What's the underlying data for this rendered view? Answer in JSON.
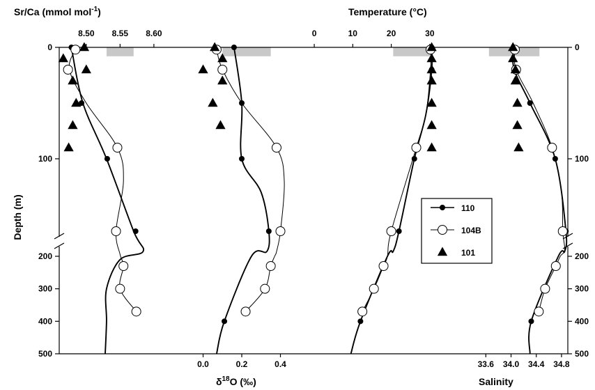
{
  "chart_data": {
    "type": "scatter",
    "title": "",
    "layout": "multi-panel depth profiles sharing a broken depth axis",
    "y_axis": {
      "label": "Depth (m)",
      "inverted": true,
      "upper_ticks": [
        "0",
        "100"
      ],
      "upper_tick_values": [
        0,
        100
      ],
      "upper_range": [
        0,
        170
      ],
      "lower_ticks": [
        "200",
        "300",
        "400",
        "500"
      ],
      "lower_tick_values": [
        200,
        300,
        400,
        500
      ],
      "lower_range": [
        170,
        500
      ]
    },
    "top_axes": [
      {
        "label": "Sr/Ca (mmol mol",
        "label_sup": "-1",
        "label_tail": ")",
        "ticks": [
          "8.50",
          "8.55",
          "8.60"
        ],
        "tick_values": [
          8.5,
          8.55,
          8.6
        ],
        "range": [
          8.46,
          8.63
        ]
      },
      {
        "label": "Temperature (°C)",
        "ticks": [
          "0",
          "10",
          "20",
          "30"
        ],
        "tick_values": [
          0,
          10,
          20,
          30
        ],
        "range": [
          -2,
          36
        ]
      }
    ],
    "bottom_axes": [
      {
        "label_delta": "δ",
        "label_sup": "18",
        "label_tail": "O (‰)",
        "ticks": [
          "0.0",
          "0.2",
          "0.4"
        ],
        "tick_values": [
          0.0,
          0.2,
          0.4
        ],
        "range": [
          -0.2,
          0.6
        ]
      },
      {
        "label": "Salinity",
        "ticks": [
          "33.6",
          "34.0",
          "34.4",
          "34.8"
        ],
        "tick_values": [
          33.6,
          34.0,
          34.4,
          34.8
        ],
        "range": [
          33.1,
          34.9
        ]
      }
    ],
    "legend": {
      "position": "right-middle",
      "entries": [
        {
          "label": "110",
          "marker": "filled-circle"
        },
        {
          "label": "104B",
          "marker": "open-circle"
        },
        {
          "label": "101",
          "marker": "filled-triangle"
        }
      ]
    },
    "mixed_layer_bars": [
      {
        "variable": "Sr/Ca",
        "x_range": [
          8.53,
          8.57
        ],
        "depth_range": [
          0,
          8
        ]
      },
      {
        "variable": "d18O",
        "x_range": [
          0.1,
          0.35
        ],
        "depth_range": [
          0,
          8
        ]
      },
      {
        "variable": "Temperature",
        "x_range": [
          20.5,
          30
        ],
        "depth_range": [
          0,
          8
        ]
      },
      {
        "variable": "Salinity",
        "x_range": [
          33.65,
          34.45
        ],
        "depth_range": [
          0,
          8
        ]
      }
    ],
    "series": [
      {
        "name": "110",
        "variable": "Sr/Ca",
        "marker": "filled-circle",
        "points": [
          {
            "x": 8.478,
            "y": 0
          },
          {
            "x": 8.493,
            "y": 50
          },
          {
            "x": 8.531,
            "y": 100
          },
          {
            "x": 8.573,
            "y": 165
          }
        ],
        "curve": [
          {
            "x": 8.478,
            "y": 0
          },
          {
            "x": 8.495,
            "y": 50
          },
          {
            "x": 8.53,
            "y": 100
          },
          {
            "x": 8.57,
            "y": 165
          },
          {
            "x": 8.584,
            "y": 185
          },
          {
            "x": 8.55,
            "y": 210
          },
          {
            "x": 8.53,
            "y": 300
          },
          {
            "x": 8.53,
            "y": 400
          },
          {
            "x": 8.528,
            "y": 500
          }
        ]
      },
      {
        "name": "104B",
        "variable": "Sr/Ca",
        "marker": "open-circle",
        "points": [
          {
            "x": 8.484,
            "y": 2
          },
          {
            "x": 8.473,
            "y": 20
          },
          {
            "x": 8.546,
            "y": 90
          },
          {
            "x": 8.544,
            "y": 165
          },
          {
            "x": 8.555,
            "y": 230
          },
          {
            "x": 8.55,
            "y": 300
          },
          {
            "x": 8.574,
            "y": 370
          }
        ],
        "curve": [
          {
            "x": 8.484,
            "y": 2
          },
          {
            "x": 8.475,
            "y": 20
          },
          {
            "x": 8.5,
            "y": 50
          },
          {
            "x": 8.546,
            "y": 90
          },
          {
            "x": 8.555,
            "y": 120
          },
          {
            "x": 8.544,
            "y": 165
          },
          {
            "x": 8.55,
            "y": 195
          },
          {
            "x": 8.555,
            "y": 230
          },
          {
            "x": 8.55,
            "y": 300
          },
          {
            "x": 8.574,
            "y": 370
          }
        ]
      },
      {
        "name": "101",
        "variable": "Sr/Ca",
        "marker": "filled-triangle",
        "points": [
          {
            "x": 8.497,
            "y": 0
          },
          {
            "x": 8.466,
            "y": 10
          },
          {
            "x": 8.5,
            "y": 20
          },
          {
            "x": 8.48,
            "y": 30
          },
          {
            "x": 8.485,
            "y": 50
          },
          {
            "x": 8.48,
            "y": 70
          },
          {
            "x": 8.474,
            "y": 90
          }
        ]
      },
      {
        "name": "110",
        "variable": "d18O",
        "marker": "filled-circle",
        "points": [
          {
            "x": 0.16,
            "y": 0
          },
          {
            "x": 0.2,
            "y": 50
          },
          {
            "x": 0.2,
            "y": 100
          },
          {
            "x": 0.34,
            "y": 165
          },
          {
            "x": 0.11,
            "y": 400
          }
        ],
        "curve": [
          {
            "x": 0.16,
            "y": 0
          },
          {
            "x": 0.2,
            "y": 50
          },
          {
            "x": 0.2,
            "y": 100
          },
          {
            "x": 0.3,
            "y": 130
          },
          {
            "x": 0.34,
            "y": 165
          },
          {
            "x": 0.33,
            "y": 185
          },
          {
            "x": 0.25,
            "y": 200
          },
          {
            "x": 0.11,
            "y": 400
          },
          {
            "x": 0.07,
            "y": 500
          }
        ]
      },
      {
        "name": "104B",
        "variable": "d18O",
        "marker": "open-circle",
        "points": [
          {
            "x": 0.07,
            "y": 2
          },
          {
            "x": 0.1,
            "y": 20
          },
          {
            "x": 0.38,
            "y": 90
          },
          {
            "x": 0.4,
            "y": 165
          },
          {
            "x": 0.35,
            "y": 230
          },
          {
            "x": 0.32,
            "y": 300
          },
          {
            "x": 0.22,
            "y": 370
          }
        ],
        "curve": [
          {
            "x": 0.07,
            "y": 2
          },
          {
            "x": 0.1,
            "y": 20
          },
          {
            "x": 0.2,
            "y": 50
          },
          {
            "x": 0.38,
            "y": 90
          },
          {
            "x": 0.42,
            "y": 120
          },
          {
            "x": 0.4,
            "y": 165
          },
          {
            "x": 0.38,
            "y": 185
          },
          {
            "x": 0.37,
            "y": 200
          },
          {
            "x": 0.35,
            "y": 230
          },
          {
            "x": 0.32,
            "y": 300
          },
          {
            "x": 0.22,
            "y": 370
          }
        ]
      },
      {
        "name": "101",
        "variable": "d18O",
        "marker": "filled-triangle",
        "points": [
          {
            "x": 0.06,
            "y": 0
          },
          {
            "x": 0.1,
            "y": 10
          },
          {
            "x": 0.0,
            "y": 20
          },
          {
            "x": 0.1,
            "y": 30
          },
          {
            "x": 0.05,
            "y": 50
          },
          {
            "x": 0.09,
            "y": 70
          }
        ]
      },
      {
        "name": "110",
        "variable": "Temperature",
        "marker": "filled-circle",
        "points": [
          {
            "x": 30.5,
            "y": 0
          },
          {
            "x": 30.5,
            "y": 20
          },
          {
            "x": 26.0,
            "y": 100
          },
          {
            "x": 22.0,
            "y": 165
          },
          {
            "x": 12.0,
            "y": 400
          }
        ],
        "curve": [
          {
            "x": 30.5,
            "y": 0
          },
          {
            "x": 30.5,
            "y": 20
          },
          {
            "x": 29,
            "y": 60
          },
          {
            "x": 26,
            "y": 100
          },
          {
            "x": 22,
            "y": 165
          },
          {
            "x": 20.5,
            "y": 185
          },
          {
            "x": 19,
            "y": 200
          },
          {
            "x": 12,
            "y": 400
          },
          {
            "x": 9.5,
            "y": 500
          }
        ]
      },
      {
        "name": "104B",
        "variable": "Temperature",
        "marker": "open-circle",
        "points": [
          {
            "x": 30.2,
            "y": 2
          },
          {
            "x": 26.5,
            "y": 90
          },
          {
            "x": 20.0,
            "y": 165
          },
          {
            "x": 18.0,
            "y": 230
          },
          {
            "x": 15.5,
            "y": 300
          },
          {
            "x": 12.5,
            "y": 370
          }
        ],
        "curve": [
          {
            "x": 30.2,
            "y": 2
          },
          {
            "x": 30.2,
            "y": 20
          },
          {
            "x": 29,
            "y": 60
          },
          {
            "x": 26.5,
            "y": 90
          },
          {
            "x": 20,
            "y": 165
          },
          {
            "x": 19,
            "y": 200
          },
          {
            "x": 18,
            "y": 230
          },
          {
            "x": 15.5,
            "y": 300
          },
          {
            "x": 12.5,
            "y": 370
          }
        ]
      },
      {
        "name": "101",
        "variable": "Temperature",
        "marker": "filled-triangle",
        "points": [
          {
            "x": 30.5,
            "y": 0
          },
          {
            "x": 30.5,
            "y": 10
          },
          {
            "x": 30.5,
            "y": 20
          },
          {
            "x": 30.5,
            "y": 30
          },
          {
            "x": 30.5,
            "y": 50
          },
          {
            "x": 30.5,
            "y": 70
          },
          {
            "x": 30.5,
            "y": 90
          }
        ]
      },
      {
        "name": "110",
        "variable": "Salinity",
        "marker": "filled-circle",
        "points": [
          {
            "x": 34.04,
            "y": 0
          },
          {
            "x": 34.05,
            "y": 20
          },
          {
            "x": 34.3,
            "y": 50
          },
          {
            "x": 34.7,
            "y": 100
          },
          {
            "x": 34.87,
            "y": 165
          },
          {
            "x": 34.32,
            "y": 400
          }
        ],
        "curve": [
          {
            "x": 34.04,
            "y": 0
          },
          {
            "x": 34.05,
            "y": 20
          },
          {
            "x": 34.3,
            "y": 50
          },
          {
            "x": 34.7,
            "y": 100
          },
          {
            "x": 34.87,
            "y": 165
          },
          {
            "x": 34.85,
            "y": 185
          },
          {
            "x": 34.75,
            "y": 200
          },
          {
            "x": 34.32,
            "y": 400
          },
          {
            "x": 34.3,
            "y": 500
          }
        ]
      },
      {
        "name": "104B",
        "variable": "Salinity",
        "marker": "open-circle",
        "points": [
          {
            "x": 34.06,
            "y": 2
          },
          {
            "x": 34.08,
            "y": 20
          },
          {
            "x": 34.65,
            "y": 90
          },
          {
            "x": 34.82,
            "y": 165
          },
          {
            "x": 34.71,
            "y": 230
          },
          {
            "x": 34.54,
            "y": 300
          },
          {
            "x": 34.44,
            "y": 370
          }
        ],
        "curve": [
          {
            "x": 34.06,
            "y": 2
          },
          {
            "x": 34.08,
            "y": 20
          },
          {
            "x": 34.35,
            "y": 50
          },
          {
            "x": 34.65,
            "y": 90
          },
          {
            "x": 34.8,
            "y": 130
          },
          {
            "x": 34.82,
            "y": 165
          },
          {
            "x": 34.85,
            "y": 180
          },
          {
            "x": 34.78,
            "y": 200
          },
          {
            "x": 34.71,
            "y": 230
          },
          {
            "x": 34.54,
            "y": 300
          },
          {
            "x": 34.44,
            "y": 370
          }
        ]
      },
      {
        "name": "101",
        "variable": "Salinity",
        "marker": "filled-triangle",
        "points": [
          {
            "x": 34.03,
            "y": 0
          },
          {
            "x": 34.03,
            "y": 10
          },
          {
            "x": 34.07,
            "y": 20
          },
          {
            "x": 34.07,
            "y": 30
          },
          {
            "x": 34.1,
            "y": 50
          },
          {
            "x": 34.1,
            "y": 70
          },
          {
            "x": 34.12,
            "y": 90
          }
        ]
      }
    ]
  }
}
